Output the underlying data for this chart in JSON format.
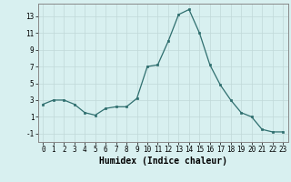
{
  "xlabel": "Humidex (Indice chaleur)",
  "x": [
    0,
    1,
    2,
    3,
    4,
    5,
    6,
    7,
    8,
    9,
    10,
    11,
    12,
    13,
    14,
    15,
    16,
    17,
    18,
    19,
    20,
    21,
    22,
    23
  ],
  "y": [
    2.5,
    3.0,
    3.0,
    2.5,
    1.5,
    1.2,
    2.0,
    2.2,
    2.2,
    3.2,
    7.0,
    7.2,
    10.0,
    13.2,
    13.8,
    11.0,
    7.2,
    4.8,
    3.0,
    1.5,
    1.0,
    -0.5,
    -0.8,
    -0.8
  ],
  "line_color": "#2e6e6e",
  "marker": "s",
  "marker_size": 2,
  "bg_color": "#d8f0f0",
  "grid_color": "#c0d8d8",
  "ylim": [
    -2,
    14.5
  ],
  "yticks": [
    -1,
    1,
    3,
    5,
    7,
    9,
    11,
    13
  ],
  "xlim": [
    -0.5,
    23.5
  ],
  "tick_fontsize": 5.5,
  "xlabel_fontsize": 7,
  "xlabel_fontweight": "bold"
}
